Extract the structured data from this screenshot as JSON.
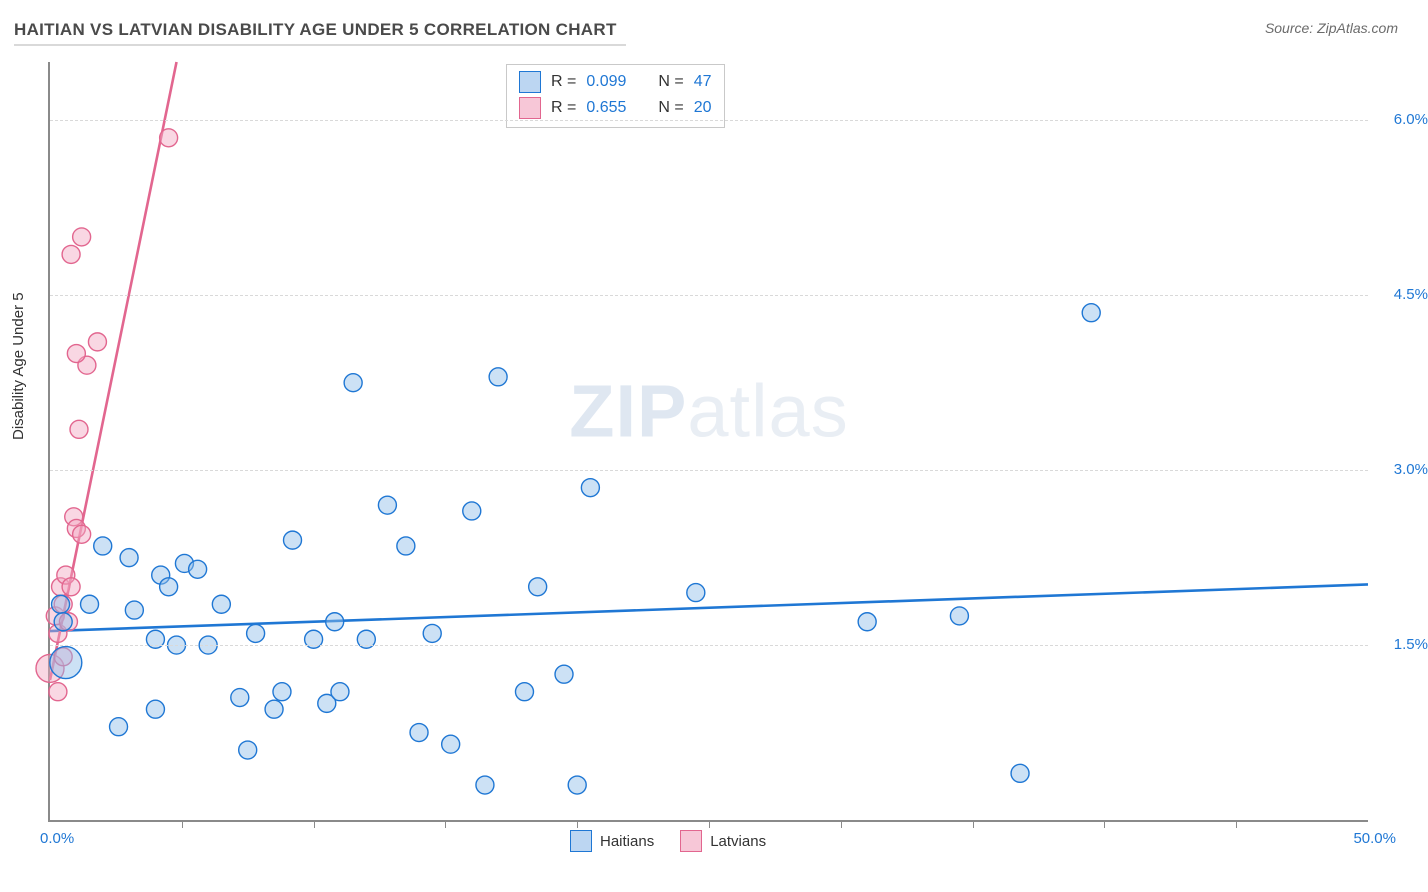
{
  "title": "HAITIAN VS LATVIAN DISABILITY AGE UNDER 5 CORRELATION CHART",
  "source": "Source: ZipAtlas.com",
  "y_axis_label": "Disability Age Under 5",
  "watermark_bold": "ZIP",
  "watermark_rest": "atlas",
  "chart": {
    "type": "scatter",
    "background_color": "#ffffff",
    "grid_color": "#d9d9d9",
    "axis_color": "#8a8a8a",
    "xlim": [
      0,
      50
    ],
    "ylim": [
      0,
      6.5
    ],
    "x_tick_step": 5,
    "y_ticks": [
      1.5,
      3.0,
      4.5,
      6.0
    ],
    "y_tick_labels": [
      "1.5%",
      "3.0%",
      "4.5%",
      "6.0%"
    ],
    "x_min_label": "0.0%",
    "x_max_label": "50.0%",
    "label_color": "#1f77d4",
    "label_fontsize": 15,
    "marker_radius": 9,
    "marker_stroke_width": 1.4,
    "marker_fill_opacity": 0.45,
    "line_width": 2.6
  },
  "series": {
    "haitians": {
      "label": "Haitians",
      "color_stroke": "#1f77d4",
      "color_fill": "#8fbce8",
      "R": "0.099",
      "N": "47",
      "trend_line": {
        "x1": 0,
        "y1": 1.62,
        "x2": 50,
        "y2": 2.02
      },
      "points": [
        {
          "x": 0.4,
          "y": 1.85
        },
        {
          "x": 0.5,
          "y": 1.7
        },
        {
          "x": 0.6,
          "y": 1.35,
          "r": 16
        },
        {
          "x": 1.5,
          "y": 1.85
        },
        {
          "x": 2.0,
          "y": 2.35
        },
        {
          "x": 2.6,
          "y": 0.8
        },
        {
          "x": 3.0,
          "y": 2.25
        },
        {
          "x": 3.2,
          "y": 1.8
        },
        {
          "x": 4.0,
          "y": 1.55
        },
        {
          "x": 4.2,
          "y": 2.1
        },
        {
          "x": 4.5,
          "y": 2.0
        },
        {
          "x": 4.8,
          "y": 1.5
        },
        {
          "x": 5.1,
          "y": 2.2
        },
        {
          "x": 5.6,
          "y": 2.15
        },
        {
          "x": 6.0,
          "y": 1.5
        },
        {
          "x": 6.5,
          "y": 1.85
        },
        {
          "x": 7.2,
          "y": 1.05
        },
        {
          "x": 7.5,
          "y": 0.6
        },
        {
          "x": 7.8,
          "y": 1.6
        },
        {
          "x": 8.5,
          "y": 0.95
        },
        {
          "x": 8.8,
          "y": 1.1
        },
        {
          "x": 9.2,
          "y": 2.4
        },
        {
          "x": 10.0,
          "y": 1.55
        },
        {
          "x": 10.5,
          "y": 1.0
        },
        {
          "x": 10.8,
          "y": 1.7
        },
        {
          "x": 11.0,
          "y": 1.1
        },
        {
          "x": 11.5,
          "y": 3.75
        },
        {
          "x": 12.0,
          "y": 1.55
        },
        {
          "x": 12.8,
          "y": 2.7
        },
        {
          "x": 13.5,
          "y": 2.35
        },
        {
          "x": 14.0,
          "y": 0.75
        },
        {
          "x": 14.5,
          "y": 1.6
        },
        {
          "x": 15.2,
          "y": 0.65
        },
        {
          "x": 16.0,
          "y": 2.65
        },
        {
          "x": 16.5,
          "y": 0.3
        },
        {
          "x": 17.0,
          "y": 3.8
        },
        {
          "x": 18.0,
          "y": 1.1
        },
        {
          "x": 18.5,
          "y": 2.0
        },
        {
          "x": 19.5,
          "y": 1.25
        },
        {
          "x": 20.0,
          "y": 0.3
        },
        {
          "x": 20.5,
          "y": 2.85
        },
        {
          "x": 31.0,
          "y": 1.7
        },
        {
          "x": 34.5,
          "y": 1.75
        },
        {
          "x": 36.8,
          "y": 0.4
        },
        {
          "x": 39.5,
          "y": 4.35
        },
        {
          "x": 24.5,
          "y": 1.95
        },
        {
          "x": 4.0,
          "y": 0.95
        }
      ]
    },
    "latvians": {
      "label": "Latvians",
      "color_stroke": "#e2668f",
      "color_fill": "#f2a7c0",
      "R": "0.655",
      "N": "20",
      "trend_line": {
        "x1": 0.0,
        "y1": 1.2,
        "x2": 4.8,
        "y2": 6.5
      },
      "points": [
        {
          "x": 0.0,
          "y": 1.3,
          "r": 14
        },
        {
          "x": 0.2,
          "y": 1.75
        },
        {
          "x": 0.3,
          "y": 1.6
        },
        {
          "x": 0.4,
          "y": 2.0
        },
        {
          "x": 0.5,
          "y": 1.85
        },
        {
          "x": 0.6,
          "y": 2.1
        },
        {
          "x": 0.5,
          "y": 1.4
        },
        {
          "x": 0.7,
          "y": 1.7
        },
        {
          "x": 0.8,
          "y": 2.0
        },
        {
          "x": 0.9,
          "y": 2.6
        },
        {
          "x": 1.0,
          "y": 2.5
        },
        {
          "x": 1.2,
          "y": 2.45
        },
        {
          "x": 1.1,
          "y": 3.35
        },
        {
          "x": 1.4,
          "y": 3.9
        },
        {
          "x": 1.0,
          "y": 4.0
        },
        {
          "x": 1.8,
          "y": 4.1
        },
        {
          "x": 0.8,
          "y": 4.85
        },
        {
          "x": 1.2,
          "y": 5.0
        },
        {
          "x": 4.5,
          "y": 5.85
        },
        {
          "x": 0.3,
          "y": 1.1
        }
      ]
    }
  },
  "legend_top": {
    "rows": [
      {
        "swatch": "blue",
        "R_label": "R =",
        "R": "0.099",
        "N_label": "N =",
        "N": "47"
      },
      {
        "swatch": "pink",
        "R_label": "R =",
        "R": "0.655",
        "N_label": "N =",
        "N": "20"
      }
    ]
  },
  "legend_bottom": {
    "items": [
      {
        "swatch": "blue",
        "label": "Haitians"
      },
      {
        "swatch": "pink",
        "label": "Latvians"
      }
    ]
  }
}
